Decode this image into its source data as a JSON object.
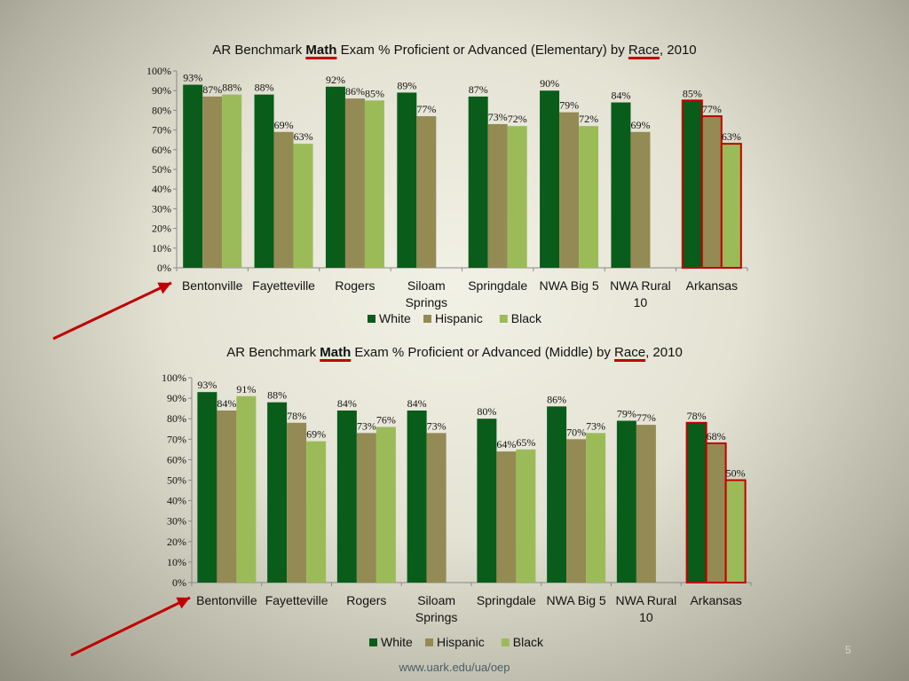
{
  "charts": [
    {
      "title_parts": [
        "AR Benchmark ",
        "Math",
        " Exam % Proficient or Advanced (Elementary) by ",
        "Race",
        ", 2010"
      ]
    },
    {
      "title_parts": [
        "AR Benchmark ",
        "Math",
        " Exam % Proficient or Advanced (Middle) by ",
        "Race",
        ", 2010"
      ]
    }
  ],
  "chart_data": [
    {
      "type": "bar",
      "title": "AR Benchmark Math Exam % Proficient or Advanced (Elementary) by Race, 2010",
      "categories": [
        "Bentonville",
        "Fayetteville",
        "Rogers",
        "Siloam\nSprings",
        "Springdale",
        "NWA Big 5",
        "NWA Rural\n10",
        "Arkansas"
      ],
      "series": [
        {
          "name": "White",
          "color": "#0a5c1a",
          "values": [
            93,
            88,
            92,
            89,
            87,
            90,
            84,
            85
          ]
        },
        {
          "name": "Hispanic",
          "color": "#948a54",
          "values": [
            87,
            69,
            86,
            77,
            73,
            79,
            69,
            77
          ]
        },
        {
          "name": "Black",
          "color": "#9bbb59",
          "values": [
            88,
            63,
            85,
            null,
            72,
            72,
            null,
            63
          ]
        }
      ],
      "ylim": [
        0,
        100
      ],
      "yticks": [
        "0%",
        "10%",
        "20%",
        "30%",
        "40%",
        "50%",
        "60%",
        "70%",
        "80%",
        "90%",
        "100%"
      ],
      "highlight_category": "Arkansas",
      "highlight_color": "#c00000",
      "legend": "bottom"
    },
    {
      "type": "bar",
      "title": "AR Benchmark Math Exam % Proficient or Advanced (Middle) by Race, 2010",
      "categories": [
        "Bentonville",
        "Fayetteville",
        "Rogers",
        "Siloam\nSprings",
        "Springdale",
        "NWA Big 5",
        "NWA Rural\n10",
        "Arkansas"
      ],
      "series": [
        {
          "name": "White",
          "color": "#0a5c1a",
          "values": [
            93,
            88,
            84,
            84,
            80,
            86,
            79,
            78
          ]
        },
        {
          "name": "Hispanic",
          "color": "#948a54",
          "values": [
            84,
            78,
            73,
            73,
            64,
            70,
            77,
            68
          ]
        },
        {
          "name": "Black",
          "color": "#9bbb59",
          "values": [
            91,
            69,
            76,
            null,
            65,
            73,
            null,
            50
          ]
        }
      ],
      "ylim": [
        0,
        100
      ],
      "yticks": [
        "0%",
        "10%",
        "20%",
        "30%",
        "40%",
        "50%",
        "60%",
        "70%",
        "80%",
        "90%",
        "100%"
      ],
      "highlight_category": "Arkansas",
      "highlight_color": "#c00000",
      "legend": "bottom"
    }
  ],
  "footer": "www.uark.edu/ua/oep",
  "page_number": "5",
  "arrow_color": "#c00000"
}
